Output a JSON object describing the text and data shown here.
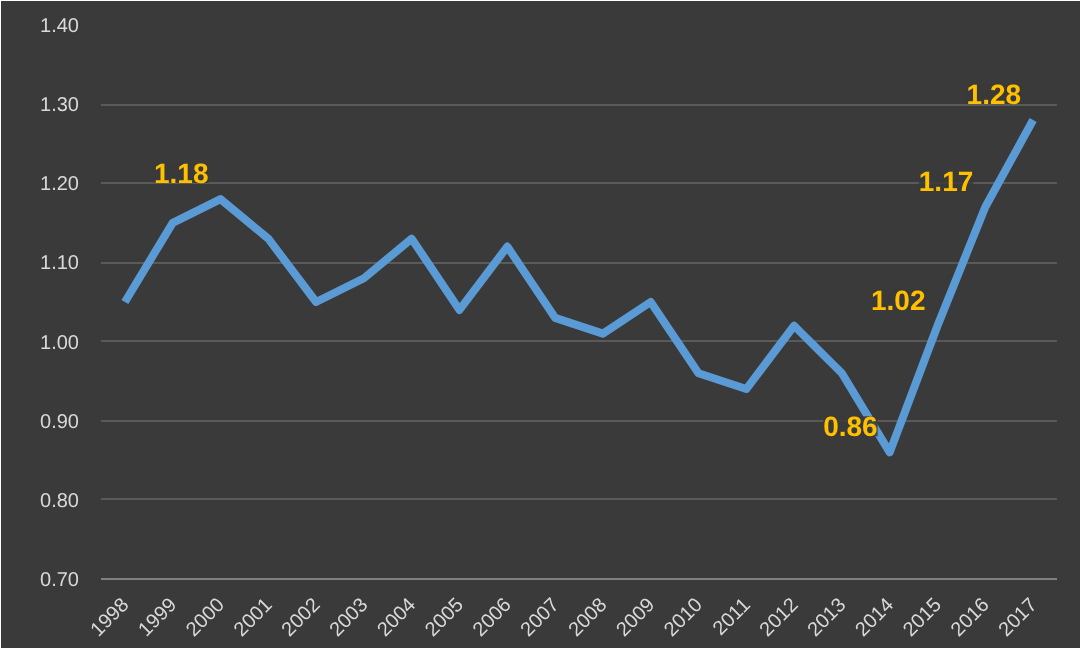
{
  "chart_data": {
    "type": "line",
    "categories": [
      "1998",
      "1999",
      "2000",
      "2001",
      "2002",
      "2003",
      "2004",
      "2005",
      "2006",
      "2007",
      "2008",
      "2009",
      "2010",
      "2011",
      "2012",
      "2013",
      "2014",
      "2015",
      "2016",
      "2017"
    ],
    "series": [
      {
        "color": "#5b9bd5",
        "values": [
          1.05,
          1.15,
          1.18,
          1.13,
          1.05,
          1.08,
          1.13,
          1.04,
          1.12,
          1.03,
          1.01,
          1.05,
          0.96,
          0.94,
          1.02,
          0.96,
          0.86,
          1.02,
          1.17,
          1.28
        ],
        "value_labels": [
          null,
          null,
          "1.18",
          null,
          null,
          null,
          null,
          null,
          null,
          null,
          null,
          null,
          null,
          null,
          null,
          null,
          "0.86",
          "1.02",
          "1.17",
          "1.28"
        ]
      }
    ],
    "ylim": [
      0.7,
      1.4
    ],
    "yticks": [
      {
        "value": 0.7,
        "label": "0.70"
      },
      {
        "value": 0.8,
        "label": "0.80"
      },
      {
        "value": 0.9,
        "label": "0.90"
      },
      {
        "value": 1.0,
        "label": "1.00"
      },
      {
        "value": 1.1,
        "label": "1.10"
      },
      {
        "value": 1.2,
        "label": "1.20"
      },
      {
        "value": 1.3,
        "label": "1.30"
      },
      {
        "value": 1.4,
        "label": "1.40"
      }
    ],
    "grid": "y",
    "marker": "none",
    "line_style": "solid"
  }
}
